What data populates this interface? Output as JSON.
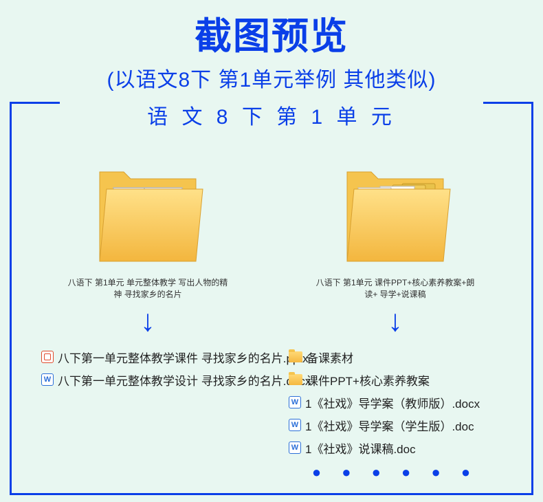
{
  "title": "截图预览",
  "subtitle": "(以语文8下 第1单元举例 其他类似)",
  "section_label": "语 文 8 下  第 1 单 元",
  "colors": {
    "primary": "#0a3fe8",
    "background": "#e8f7f1",
    "pptx_accent": "#e04a2b",
    "docx_accent": "#2b6fd8",
    "folder_light": "#ffd977",
    "folder_dark": "#f5b840",
    "text": "#222222"
  },
  "left": {
    "caption": "八语下 第1单元 单元整体教学  写出人物的精神\n寻找家乡的名片",
    "files": [
      {
        "icon": "pptx",
        "name": "八下第一单元整体教学课件  寻找家乡的名片.pptx"
      },
      {
        "icon": "docx",
        "name": "八下第一单元整体教学设计  寻找家乡的名片.docx"
      }
    ]
  },
  "right": {
    "caption": "八语下 第1单元 课件PPT+核心素养教案+朗读+\n导学+说课稿",
    "files": [
      {
        "icon": "folder",
        "name": "备课素材"
      },
      {
        "icon": "folder",
        "name": "课件PPT+核心素养教案"
      },
      {
        "icon": "docx",
        "name": "1《社戏》导学案（教师版）.docx"
      },
      {
        "icon": "docx",
        "name": "1《社戏》导学案（学生版）.doc"
      },
      {
        "icon": "docx",
        "name": "1《社戏》说课稿.doc"
      }
    ]
  },
  "dots": "● ● ● ● ● ●",
  "arrow_glyph": "↓"
}
